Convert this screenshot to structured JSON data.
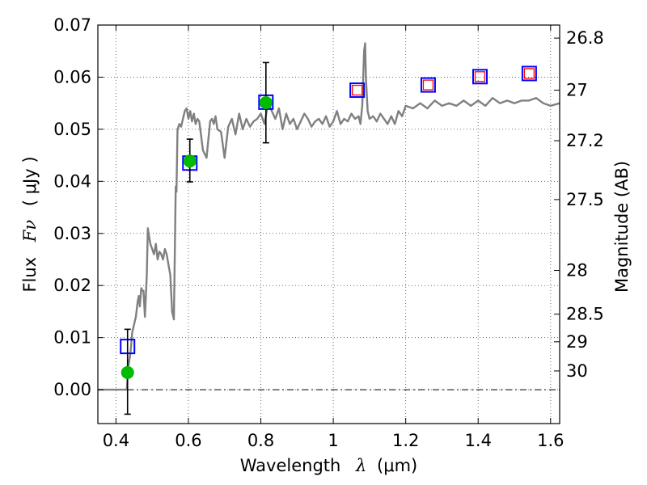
{
  "chart_data": {
    "type": "scatter",
    "xlabel": "Wavelength",
    "xlabel_symbol": "λ",
    "xlabel_unit": "(μm)",
    "ylabel": "Flux",
    "ylabel_symbol": "Fν",
    "ylabel_unit": "( μJy )",
    "y2label": "Magnitude (AB)",
    "xlim": [
      0.35,
      1.625
    ],
    "ylim": [
      -0.0065,
      0.07
    ],
    "grid": true,
    "x_ticks": [
      {
        "value": 0.4,
        "label": "0.4"
      },
      {
        "value": 0.6,
        "label": "0.6"
      },
      {
        "value": 0.8,
        "label": "0.8"
      },
      {
        "value": 1.0,
        "label": "1"
      },
      {
        "value": 1.2,
        "label": "1.2"
      },
      {
        "value": 1.4,
        "label": "1.4"
      },
      {
        "value": 1.6,
        "label": "1.6"
      }
    ],
    "y_ticks": [
      {
        "value": 0.0,
        "label": "0.00"
      },
      {
        "value": 0.01,
        "label": "0.01"
      },
      {
        "value": 0.02,
        "label": "0.02"
      },
      {
        "value": 0.03,
        "label": "0.03"
      },
      {
        "value": 0.04,
        "label": "0.04"
      },
      {
        "value": 0.05,
        "label": "0.05"
      },
      {
        "value": 0.06,
        "label": "0.06"
      },
      {
        "value": 0.07,
        "label": "0.07"
      }
    ],
    "y2_ticks": [
      {
        "flux": 0.0675,
        "label": "26.8"
      },
      {
        "flux": 0.0575,
        "label": "27"
      },
      {
        "flux": 0.0478,
        "label": "27.2"
      },
      {
        "flux": 0.0365,
        "label": "27.5"
      },
      {
        "flux": 0.0229,
        "label": "28"
      },
      {
        "flux": 0.0145,
        "label": "28.5"
      },
      {
        "flux": 0.0092,
        "label": "29"
      },
      {
        "flux": 0.0036,
        "label": "30"
      }
    ],
    "series": [
      {
        "kind": "line",
        "color": "#808080",
        "x": [
          0.35,
          0.43,
          0.433,
          0.44,
          0.445,
          0.455,
          0.46,
          0.463,
          0.466,
          0.47,
          0.473,
          0.476,
          0.48,
          0.485,
          0.488,
          0.49,
          0.495,
          0.5,
          0.505,
          0.51,
          0.515,
          0.52,
          0.525,
          0.53,
          0.535,
          0.54,
          0.545,
          0.55,
          0.555,
          0.56,
          0.565,
          0.567,
          0.57,
          0.575,
          0.58,
          0.585,
          0.59,
          0.595,
          0.6,
          0.605,
          0.61,
          0.615,
          0.62,
          0.625,
          0.63,
          0.64,
          0.65,
          0.655,
          0.66,
          0.665,
          0.67,
          0.675,
          0.68,
          0.69,
          0.7,
          0.71,
          0.72,
          0.73,
          0.74,
          0.75,
          0.76,
          0.77,
          0.78,
          0.79,
          0.8,
          0.81,
          0.82,
          0.83,
          0.84,
          0.85,
          0.86,
          0.87,
          0.88,
          0.89,
          0.9,
          0.91,
          0.92,
          0.93,
          0.94,
          0.95,
          0.96,
          0.97,
          0.98,
          0.99,
          1.0,
          1.01,
          1.02,
          1.03,
          1.04,
          1.05,
          1.06,
          1.07,
          1.075,
          1.08,
          1.085,
          1.088,
          1.09,
          1.095,
          1.1,
          1.11,
          1.12,
          1.13,
          1.14,
          1.15,
          1.16,
          1.17,
          1.18,
          1.19,
          1.2,
          1.22,
          1.24,
          1.26,
          1.28,
          1.3,
          1.32,
          1.34,
          1.36,
          1.38,
          1.4,
          1.42,
          1.44,
          1.46,
          1.48,
          1.5,
          1.52,
          1.54,
          1.56,
          1.58,
          1.6,
          1.625
        ],
        "y": [
          0.0,
          0.0,
          0.004,
          0.007,
          0.011,
          0.014,
          0.017,
          0.018,
          0.016,
          0.0195,
          0.019,
          0.019,
          0.014,
          0.022,
          0.031,
          0.03,
          0.028,
          0.027,
          0.026,
          0.028,
          0.025,
          0.0265,
          0.026,
          0.025,
          0.027,
          0.026,
          0.024,
          0.022,
          0.015,
          0.0135,
          0.039,
          0.038,
          0.05,
          0.051,
          0.0505,
          0.052,
          0.0535,
          0.054,
          0.052,
          0.0535,
          0.0515,
          0.053,
          0.051,
          0.052,
          0.0515,
          0.046,
          0.0445,
          0.048,
          0.0515,
          0.052,
          0.051,
          0.0525,
          0.05,
          0.0495,
          0.0445,
          0.0505,
          0.052,
          0.049,
          0.053,
          0.05,
          0.052,
          0.0505,
          0.0515,
          0.052,
          0.053,
          0.051,
          0.055,
          0.0535,
          0.052,
          0.054,
          0.05,
          0.053,
          0.051,
          0.052,
          0.05,
          0.0515,
          0.053,
          0.052,
          0.0505,
          0.0515,
          0.052,
          0.051,
          0.0525,
          0.0505,
          0.0515,
          0.0535,
          0.051,
          0.052,
          0.0515,
          0.053,
          0.052,
          0.0525,
          0.051,
          0.0545,
          0.065,
          0.0665,
          0.06,
          0.0535,
          0.052,
          0.0525,
          0.0515,
          0.053,
          0.052,
          0.051,
          0.0525,
          0.051,
          0.0535,
          0.0525,
          0.0545,
          0.054,
          0.055,
          0.054,
          0.0555,
          0.0545,
          0.055,
          0.0545,
          0.0555,
          0.0545,
          0.0555,
          0.0545,
          0.056,
          0.055,
          0.0555,
          0.055,
          0.0555,
          0.0555,
          0.056,
          0.055,
          0.0545,
          0.055
        ]
      },
      {
        "kind": "markers",
        "marker": "square",
        "color": "#0000ff",
        "x": [
          0.432,
          0.604,
          0.814,
          1.066,
          1.262,
          1.405,
          1.541
        ],
        "y": [
          0.0083,
          0.0435,
          0.0552,
          0.0575,
          0.0585,
          0.0601,
          0.0607
        ]
      },
      {
        "kind": "markers",
        "marker": "small-square",
        "color": "#ff0000",
        "x": [
          1.066,
          1.262,
          1.405,
          1.541
        ],
        "y": [
          0.0575,
          0.0585,
          0.0601,
          0.0607
        ]
      },
      {
        "kind": "markers",
        "marker": "circle",
        "color": "#00bb00",
        "x": [
          0.432,
          0.604,
          0.814
        ],
        "y": [
          0.0033,
          0.0439,
          0.0551
        ],
        "err_low": [
          -0.0047,
          0.0399,
          0.0474
        ],
        "err_high": [
          0.0116,
          0.0481,
          0.0628
        ]
      }
    ]
  }
}
